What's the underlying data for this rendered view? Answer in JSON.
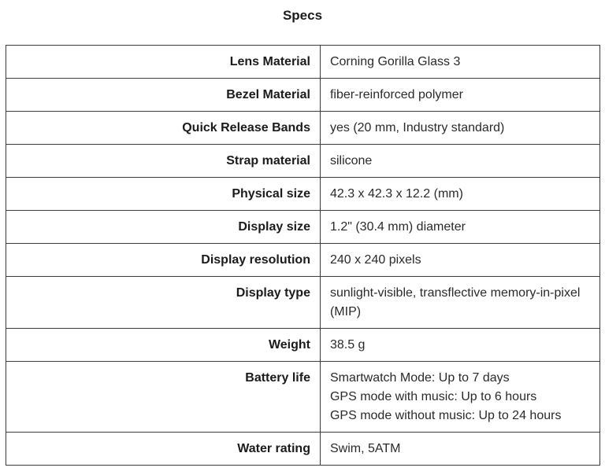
{
  "page": {
    "title": "Specs"
  },
  "colors": {
    "background": "#ffffff",
    "border": "#3c3c3c",
    "label_text": "#1b1b1b",
    "value_text": "#2a2a2a"
  },
  "table": {
    "rows": [
      {
        "label": "Lens Material",
        "value": "Corning Gorilla Glass 3"
      },
      {
        "label": "Bezel Material",
        "value": "fiber-reinforced polymer"
      },
      {
        "label": "Quick Release Bands",
        "value": "yes (20 mm, Industry standard)"
      },
      {
        "label": "Strap material",
        "value": "silicone"
      },
      {
        "label": "Physical size",
        "value": "42.3 x 42.3 x 12.2 (mm)"
      },
      {
        "label": "Display size",
        "value": "1.2\" (30.4 mm) diameter"
      },
      {
        "label": "Display resolution",
        "value": "240 x 240 pixels"
      },
      {
        "label": "Display type",
        "value": "sunlight-visible, transflective memory-in-pixel (MIP)"
      },
      {
        "label": "Weight",
        "value": "38.5 g"
      },
      {
        "label": "Battery life",
        "value": "Smartwatch Mode: Up to 7 days\nGPS mode with music: Up to 6 hours\nGPS mode without music: Up to 24 hours"
      },
      {
        "label": "Water rating",
        "value": "Swim, 5ATM"
      }
    ]
  }
}
